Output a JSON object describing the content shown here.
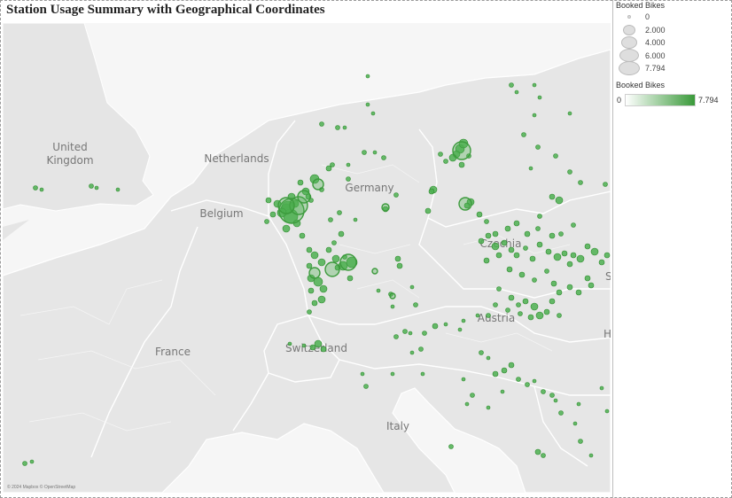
{
  "title": "Station Usage Summary with Geographical Coordinates",
  "map": {
    "labels": [
      {
        "text": "United\nKingdom",
        "name": "label-united-kingdom"
      },
      {
        "text": "Netherlands",
        "name": "label-netherlands"
      },
      {
        "text": "Belgium",
        "name": "label-belgium"
      },
      {
        "text": "Germany",
        "name": "label-germany"
      },
      {
        "text": "Czechia",
        "name": "label-czechia"
      },
      {
        "text": "Austria",
        "name": "label-austria"
      },
      {
        "text": "Switzerland",
        "name": "label-switzerland"
      },
      {
        "text": "France",
        "name": "label-france"
      },
      {
        "text": "Italy",
        "name": "label-italy"
      },
      {
        "text": "Sl",
        "name": "label-slovakia-partial"
      },
      {
        "text": "H",
        "name": "label-hungary-partial"
      }
    ],
    "attribution": "© 2024 Mapbox © OpenStreetMap",
    "marker_color": "#4caf50",
    "land_color": "#e6e6e6",
    "water_color": "#f6f6f6",
    "border_color": "#ffffff"
  },
  "legend": {
    "size_title": "Booked Bikes",
    "size_items": [
      "0",
      "2.000",
      "4.000",
      "6.000",
      "7.794"
    ],
    "color_title": "Booked Bikes",
    "color_min": "0",
    "color_max": "7.794",
    "color_start": "#ffffff",
    "color_end": "#3a9a3a"
  }
}
